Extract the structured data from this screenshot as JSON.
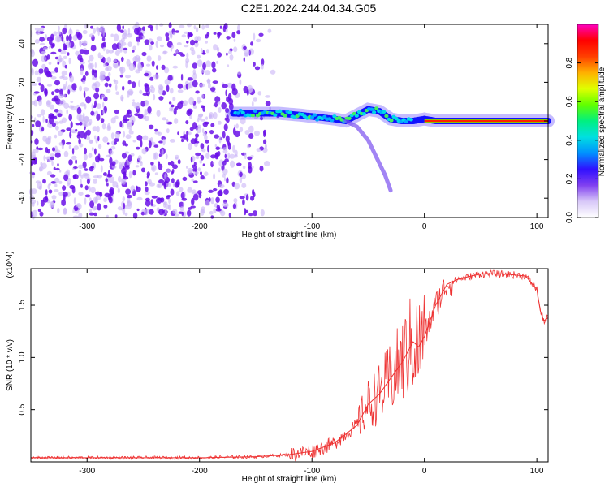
{
  "title": "C2E1.2024.244.04.34.G05",
  "colors": {
    "snr_line": "#ee3333",
    "speckle_dark": "#6a10e8",
    "speckle_light": "#c9b4f6"
  },
  "chart_data": [
    {
      "type": "heatmap",
      "xlabel": "Height of straight line (km)",
      "ylabel": "Frequency (Hz)",
      "xlim": [
        -350,
        110
      ],
      "ylim": [
        -50,
        50
      ],
      "xticks": [
        -300,
        -200,
        -100,
        0,
        100
      ],
      "yticks": [
        -40,
        -20,
        0,
        20,
        40
      ],
      "colorbar": {
        "label": "Normalized spectral amplitude",
        "range": [
          0.0,
          1.0
        ],
        "ticks": [
          "0.0",
          "0.2",
          "0.4",
          "0.6",
          "0.8"
        ],
        "colors": [
          "#ffffff",
          "#d8c8f8",
          "#8040f0",
          "#3010ff",
          "#0090ff",
          "#00e0e0",
          "#00f080",
          "#60ff00",
          "#e0ff00",
          "#ffb000",
          "#ff4000",
          "#ff0000",
          "#ff00c0"
        ]
      },
      "signal_track": {
        "x": [
          -170,
          -150,
          -130,
          -110,
          -95,
          -80,
          -70,
          -60,
          -50,
          -40,
          -30,
          -20,
          -10,
          0,
          10,
          30,
          60,
          110
        ],
        "y": [
          4,
          4,
          4,
          3,
          2,
          1,
          0,
          3,
          6,
          5,
          1,
          0,
          0,
          1,
          0,
          0,
          0,
          0
        ]
      },
      "secondary_branch": {
        "x": [
          -70,
          -60,
          -50,
          -45,
          -40,
          -35,
          -30
        ],
        "y": [
          0,
          -3,
          -10,
          -16,
          -22,
          -28,
          -36
        ]
      }
    },
    {
      "type": "line",
      "xlabel": "Height of straight line (km)",
      "ylabel": "SNR (10 * v/v)",
      "y_multiplier": "(x10^4)",
      "xlim": [
        -350,
        110
      ],
      "ylim": [
        0,
        18500
      ],
      "xticks": [
        -300,
        -200,
        -100,
        0,
        100
      ],
      "yticks": [
        5000,
        10000,
        15000
      ],
      "ytick_labels": [
        "0.5",
        "1.0",
        "1.5"
      ],
      "series": [
        {
          "name": "SNR",
          "x": [
            -350,
            -200,
            -150,
            -120,
            -100,
            -80,
            -60,
            -50,
            -40,
            -30,
            -20,
            -15,
            -10,
            -5,
            0,
            10,
            20,
            30,
            50,
            70,
            90,
            100,
            103,
            106,
            110
          ],
          "y": [
            400,
            400,
            500,
            700,
            1000,
            1800,
            3500,
            5500,
            6500,
            8000,
            9500,
            10500,
            11500,
            11000,
            12000,
            15000,
            17000,
            17500,
            18000,
            18000,
            17800,
            16500,
            14500,
            13500,
            13800
          ]
        }
      ]
    }
  ]
}
